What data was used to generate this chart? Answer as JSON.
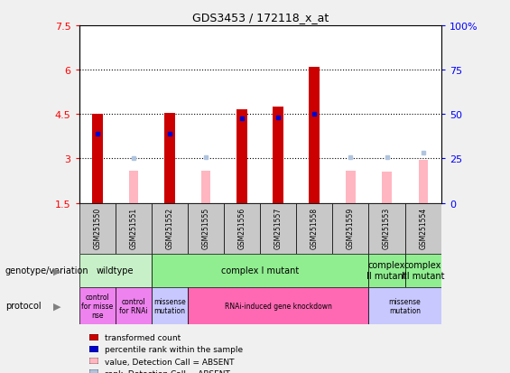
{
  "title": "GDS3453 / 172118_x_at",
  "samples": [
    "GSM251550",
    "GSM251551",
    "GSM251552",
    "GSM251555",
    "GSM251556",
    "GSM251557",
    "GSM251558",
    "GSM251559",
    "GSM251553",
    "GSM251554"
  ],
  "red_bars": [
    4.52,
    null,
    4.55,
    null,
    4.65,
    4.75,
    6.1,
    null,
    null,
    null
  ],
  "pink_bars": [
    null,
    2.6,
    null,
    2.6,
    null,
    null,
    null,
    2.6,
    2.55,
    2.95
  ],
  "blue_squares": [
    3.85,
    null,
    3.85,
    null,
    4.35,
    4.4,
    4.5,
    null,
    null,
    null
  ],
  "light_blue_squares": [
    null,
    3.0,
    null,
    3.05,
    null,
    null,
    null,
    3.05,
    3.05,
    3.2
  ],
  "ylim": [
    1.5,
    7.5
  ],
  "yticks_left": [
    1.5,
    3.0,
    4.5,
    6.0,
    7.5
  ],
  "ytick_labels_left": [
    "1.5",
    "3",
    "4.5",
    "6",
    "7.5"
  ],
  "ytick_labels_right": [
    "0",
    "25",
    "50",
    "75",
    "100%"
  ],
  "bar_width": 0.3,
  "bar_base": 1.5,
  "genotype_groups": [
    {
      "label": "wildtype",
      "start": 0,
      "end": 2,
      "color": "#c8f0c8"
    },
    {
      "label": "complex I mutant",
      "start": 2,
      "end": 8,
      "color": "#90ee90"
    },
    {
      "label": "complex\nII mutant",
      "start": 8,
      "end": 9,
      "color": "#90ee90"
    },
    {
      "label": "complex\nIII mutant",
      "start": 9,
      "end": 10,
      "color": "#90ee90"
    }
  ],
  "protocol_groups": [
    {
      "label": "control\nfor misse\nnse",
      "start": 0,
      "end": 1,
      "color": "#ee82ee"
    },
    {
      "label": "control\nfor RNAi",
      "start": 1,
      "end": 2,
      "color": "#ee82ee"
    },
    {
      "label": "missense\nmutation",
      "start": 2,
      "end": 3,
      "color": "#c8c8ff"
    },
    {
      "label": "RNAi-induced gene knockdown",
      "start": 3,
      "end": 8,
      "color": "#ff69b4"
    },
    {
      "label": "missense\nmutation",
      "start": 8,
      "end": 10,
      "color": "#c8c8ff"
    }
  ],
  "legend_items": [
    {
      "color": "#cc0000",
      "label": "transformed count"
    },
    {
      "color": "#0000cc",
      "label": "percentile rank within the sample"
    },
    {
      "color": "#ffb6c1",
      "label": "value, Detection Call = ABSENT"
    },
    {
      "color": "#b0c4de",
      "label": "rank, Detection Call = ABSENT"
    }
  ]
}
